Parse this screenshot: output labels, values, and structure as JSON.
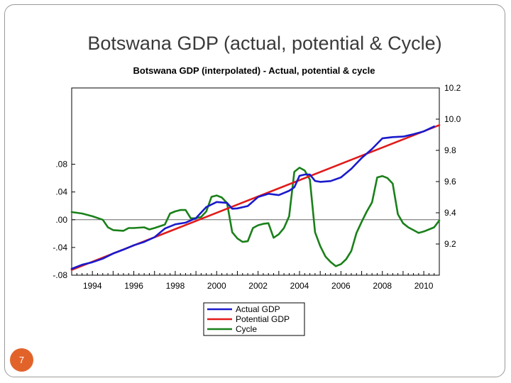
{
  "slide": {
    "title": "Botswana GDP (actual, potential & Cycle)",
    "page_number": "7",
    "accent_color": "#e2632a"
  },
  "chart_data": {
    "type": "line",
    "title": "Botswana GDP (interpolated) - Actual, potential & cycle",
    "xlabel": "",
    "ylabel": "",
    "xlim": [
      1993,
      2010.75
    ],
    "x_ticks": [
      1994,
      1996,
      1998,
      2000,
      2002,
      2004,
      2006,
      2008,
      2010
    ],
    "x_tick_labels": [
      "1994",
      "1996",
      "1998",
      "2000",
      "2002",
      "2004",
      "2006",
      "2008",
      "2010"
    ],
    "y_right": {
      "ylim": [
        9.0,
        10.2
      ],
      "ticks": [
        9.2,
        9.4,
        9.6,
        9.8,
        10.0,
        10.2
      ],
      "tick_labels": [
        "9.2",
        "9.4",
        "9.6",
        "9.8",
        "10.0",
        "10.2"
      ]
    },
    "y_left": {
      "ylim": [
        -0.08,
        0.19
      ],
      "ticks": [
        -0.08,
        -0.04,
        0.0,
        0.04,
        0.08
      ],
      "tick_labels": [
        "-.08",
        "-.04",
        ".00",
        ".04",
        ".08"
      ]
    },
    "zero_line": true,
    "grid": false,
    "legend_position": "bottom",
    "series": [
      {
        "name": "Actual GDP",
        "color": "#1a1acc",
        "axis": "right",
        "x": [
          1993.0,
          1993.5,
          1994.0,
          1994.5,
          1995.0,
          1995.5,
          1996.0,
          1996.5,
          1997.0,
          1997.5,
          1998.0,
          1998.5,
          1999.0,
          1999.5,
          2000.0,
          2000.5,
          2000.75,
          2001.0,
          2001.5,
          2002.0,
          2002.5,
          2003.0,
          2003.5,
          2003.75,
          2004.0,
          2004.25,
          2004.5,
          2004.75,
          2005.0,
          2005.5,
          2006.0,
          2006.5,
          2007.0,
          2007.5,
          2008.0,
          2008.5,
          2009.0,
          2009.5,
          2010.0,
          2010.5
        ],
        "values": [
          9.041,
          9.067,
          9.083,
          9.106,
          9.139,
          9.164,
          9.192,
          9.213,
          9.243,
          9.299,
          9.326,
          9.337,
          9.366,
          9.437,
          9.469,
          9.463,
          9.426,
          9.428,
          9.443,
          9.501,
          9.522,
          9.513,
          9.541,
          9.563,
          9.637,
          9.645,
          9.645,
          9.604,
          9.598,
          9.603,
          9.627,
          9.682,
          9.751,
          9.809,
          9.877,
          9.885,
          9.888,
          9.903,
          9.922,
          9.953
        ]
      },
      {
        "name": "Potential GDP",
        "color": "#e11a1a",
        "axis": "right",
        "x": [
          1993.0,
          2010.75
        ],
        "values": [
          9.034,
          9.962
        ]
      },
      {
        "name": "Cycle",
        "color": "#1a801a",
        "axis": "left",
        "x": [
          1993.0,
          1993.5,
          1994.0,
          1994.5,
          1994.75,
          1995.0,
          1995.5,
          1995.75,
          1996.0,
          1996.5,
          1996.75,
          1997.0,
          1997.5,
          1997.75,
          1998.0,
          1998.25,
          1998.5,
          1998.75,
          1999.0,
          1999.25,
          1999.5,
          1999.75,
          2000.0,
          2000.25,
          2000.5,
          2000.75,
          2001.0,
          2001.25,
          2001.5,
          2001.75,
          2002.0,
          2002.25,
          2002.5,
          2002.75,
          2003.0,
          2003.25,
          2003.5,
          2003.75,
          2004.0,
          2004.25,
          2004.5,
          2004.75,
          2005.0,
          2005.25,
          2005.5,
          2005.75,
          2006.0,
          2006.25,
          2006.5,
          2006.75,
          2007.0,
          2007.25,
          2007.5,
          2007.75,
          2008.0,
          2008.25,
          2008.5,
          2008.75,
          2009.0,
          2009.25,
          2009.5,
          2009.75,
          2010.0,
          2010.25,
          2010.5,
          2010.75
        ],
        "values": [
          0.011,
          0.009,
          0.005,
          0.0,
          -0.011,
          -0.015,
          -0.016,
          -0.012,
          -0.012,
          -0.011,
          -0.014,
          -0.012,
          -0.007,
          0.009,
          0.012,
          0.014,
          0.014,
          0.002,
          0.002,
          0.004,
          0.012,
          0.033,
          0.035,
          0.032,
          0.024,
          -0.018,
          -0.027,
          -0.032,
          -0.031,
          -0.012,
          -0.008,
          -0.006,
          -0.005,
          -0.026,
          -0.021,
          -0.012,
          0.005,
          0.069,
          0.075,
          0.071,
          0.058,
          -0.018,
          -0.038,
          -0.053,
          -0.061,
          -0.067,
          -0.064,
          -0.057,
          -0.045,
          -0.019,
          -0.003,
          0.012,
          0.025,
          0.061,
          0.063,
          0.06,
          0.052,
          0.008,
          -0.005,
          -0.011,
          -0.015,
          -0.019,
          -0.017,
          -0.014,
          -0.011,
          -0.001
        ]
      }
    ]
  }
}
